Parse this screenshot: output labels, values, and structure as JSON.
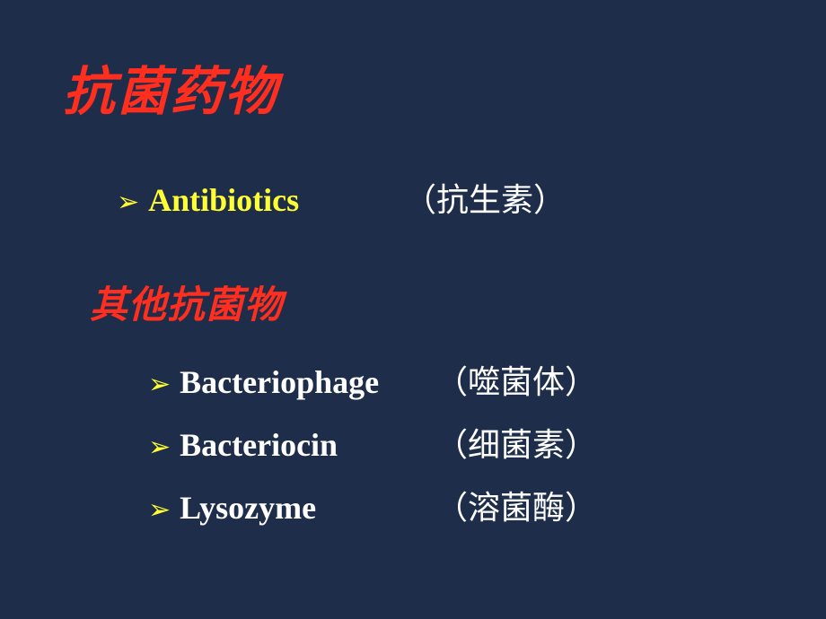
{
  "slide": {
    "background_color": "#1e2e4a",
    "title": {
      "text": "抗菌药物",
      "color": "#ff2e1f",
      "fontsize": 58,
      "font_style": "italic",
      "font_family": "KaiTi"
    },
    "main_item": {
      "bullet": "➢",
      "bullet_color": "#ffff33",
      "term": "Antibiotics",
      "term_color": "#ffff33",
      "trans": "（抗生素）",
      "trans_color": "#ffffff",
      "fontsize": 36
    },
    "subtitle": {
      "text": "其他抗菌物",
      "color": "#ff2e1f",
      "fontsize": 42,
      "font_style": "italic",
      "font_family": "KaiTi"
    },
    "sub_items": [
      {
        "bullet": "➢",
        "bullet_color": "#ffff33",
        "term": "Bacteriophage",
        "trans": "（噬菌体）"
      },
      {
        "bullet": "➢",
        "bullet_color": "#ffff33",
        "term": "Bacteriocin",
        "trans": "（细菌素）"
      },
      {
        "bullet": "➢",
        "bullet_color": "#ffff33",
        "term": "Lysozyme",
        "trans": "（溶菌酶）"
      }
    ],
    "sub_item_style": {
      "term_color": "#ffffff",
      "trans_color": "#ffffff",
      "fontsize": 36,
      "font_weight": 700
    }
  }
}
